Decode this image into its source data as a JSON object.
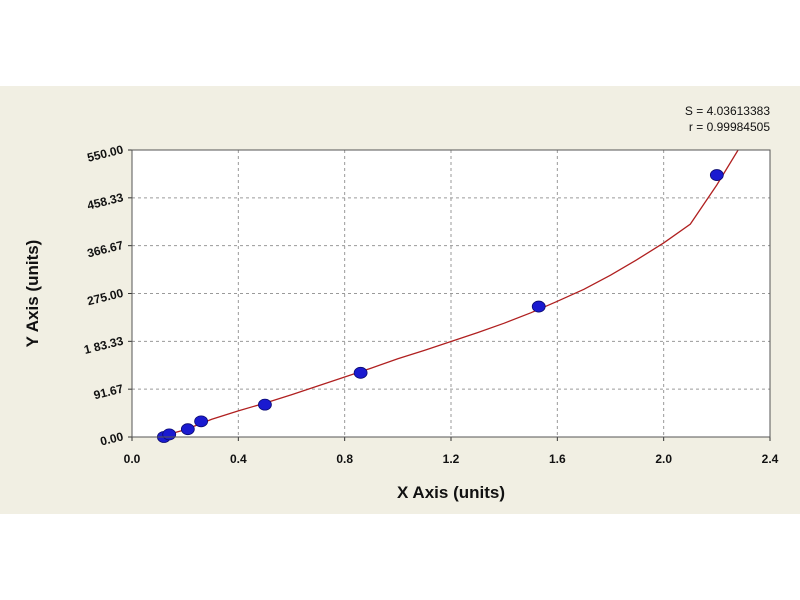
{
  "chart_data": {
    "type": "scatter",
    "title": "",
    "xlabel": "X Axis (units)",
    "ylabel": "Y Axis (units)",
    "xlim": [
      0.0,
      2.4
    ],
    "ylim": [
      0.0,
      550.0
    ],
    "x_ticks": [
      0.0,
      0.4,
      0.8,
      1.2,
      1.6,
      2.0,
      2.4
    ],
    "x_tick_labels": [
      "0.0",
      "0.4",
      "0.8",
      "1.2",
      "1.6",
      "2.0",
      "2.4"
    ],
    "y_ticks": [
      0.0,
      91.67,
      183.33,
      275.0,
      366.67,
      458.33,
      550.0
    ],
    "y_tick_labels": [
      "0.00",
      "91.67",
      "1 83.33",
      "275.00",
      "366.67",
      "458.33",
      "550.00"
    ],
    "grid": true,
    "stats": {
      "s_label": "S = 4.03613383",
      "r_label": "r = 0.99984505"
    },
    "points": {
      "x": [
        0.12,
        0.14,
        0.21,
        0.26,
        0.5,
        0.86,
        1.53,
        2.2
      ],
      "y": [
        0,
        5,
        15,
        30,
        62,
        123,
        250,
        502
      ]
    },
    "fit_curve": {
      "x": [
        0.1,
        0.2,
        0.3,
        0.4,
        0.5,
        0.6,
        0.7,
        0.8,
        0.9,
        1.0,
        1.1,
        1.2,
        1.3,
        1.4,
        1.5,
        1.6,
        1.7,
        1.8,
        1.9,
        2.0,
        2.1,
        2.2,
        2.28
      ],
      "y": [
        0,
        14,
        34,
        50,
        65,
        81,
        98,
        115,
        132,
        150,
        166,
        183,
        200,
        218,
        238,
        260,
        283,
        310,
        340,
        372,
        408,
        483,
        550
      ]
    },
    "colors": {
      "background": "#f1efe3",
      "plot_area": "#ffffff",
      "curve": "#b02020",
      "point_fill": "#1a1ad0",
      "grid": "#9a9a9a"
    }
  }
}
